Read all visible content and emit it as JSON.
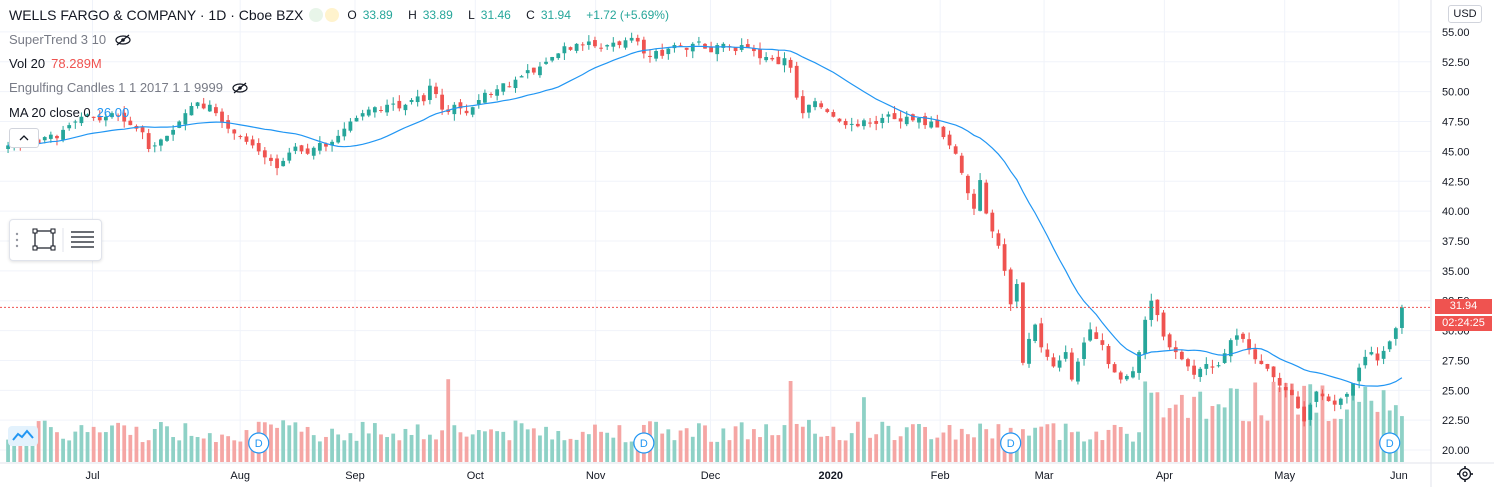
{
  "header": {
    "title": "WELLS FARGO & COMPANY · 1D · Cboe BZX",
    "ohlc": {
      "o_label": "O",
      "o": "33.89",
      "h_label": "H",
      "h": "33.89",
      "l_label": "L",
      "l": "31.46",
      "c_label": "C",
      "c": "31.94",
      "change": "+1.72 (+5.69%)"
    }
  },
  "indicators": [
    {
      "label": "SuperTrend 3 10",
      "value": ""
    },
    {
      "label": "Vol 20",
      "value": "78.289M"
    },
    {
      "label": "Engulfing Candles 1 1 2017 1 1 9999",
      "value": ""
    },
    {
      "label": "MA 20 close 0",
      "value": "26.00"
    }
  ],
  "price_axis": {
    "currency": "USD",
    "ticks": [
      "55.00",
      "52.50",
      "50.00",
      "47.50",
      "45.00",
      "42.50",
      "40.00",
      "37.50",
      "35.00",
      "32.50",
      "30.00",
      "27.50",
      "25.00",
      "22.50",
      "20.00"
    ],
    "last_price_label": "31.94",
    "countdown_label": "02:24:25"
  },
  "time_axis": {
    "labels": [
      "Jul",
      "Aug",
      "Sep",
      "Oct",
      "Nov",
      "Dec",
      "2020",
      "Feb",
      "Mar",
      "Apr",
      "May",
      "Jun"
    ]
  },
  "dividend_markers": [
    "D",
    "D",
    "D",
    "D"
  ],
  "colors": {
    "up": "#26a69a",
    "down": "#ef5350",
    "up_volume": "#8ed1c6",
    "down_volume": "#f5a6a4",
    "ma": "#2196f3",
    "last_price_tag": "#ef5350",
    "countdown_tag": "#ef5350",
    "grid": "#f0f3fa"
  },
  "chart_data": {
    "type": "candlestick",
    "title": "WELLS FARGO & COMPANY · 1D · Cboe BZX",
    "ylim": [
      19.0,
      56.5
    ],
    "x_labels": [
      "Jul",
      "Aug",
      "Sep",
      "Oct",
      "Nov",
      "Dec",
      "2020",
      "Feb",
      "Mar",
      "Apr",
      "May",
      "Jun"
    ],
    "series": [
      {
        "name": "MA 20 close 0",
        "type": "line",
        "values_key": "ma20"
      },
      {
        "name": "Vol 20",
        "type": "volume",
        "values_key": "volume"
      }
    ],
    "last": {
      "open": 33.89,
      "high": 33.89,
      "low": 31.46,
      "close": 31.94,
      "change": 1.72,
      "change_pct": 5.69,
      "ma20": 26.0,
      "volume_label": "78.289M"
    },
    "closes": [
      45.5,
      45.6,
      45.3,
      45.8,
      46.0,
      45.7,
      46.2,
      46.4,
      46.1,
      46.8,
      47.2,
      47.5,
      47.9,
      48.1,
      47.8,
      47.6,
      47.9,
      48.2,
      48.0,
      47.5,
      47.2,
      46.9,
      46.6,
      45.2,
      45.5,
      46.0,
      46.3,
      46.8,
      47.5,
      48.2,
      48.8,
      49.1,
      48.6,
      48.9,
      48.2,
      47.4,
      46.9,
      46.5,
      46.2,
      45.8,
      45.5,
      45.0,
      44.5,
      44.2,
      43.6,
      44.2,
      44.9,
      45.4,
      45.0,
      44.8,
      45.3,
      45.7,
      45.4,
      45.8,
      46.3,
      46.9,
      47.5,
      47.8,
      48.2,
      48.5,
      48.7,
      48.4,
      48.9,
      49.0,
      48.6,
      48.9,
      49.3,
      49.6,
      49.2,
      50.5,
      49.8,
      48.5,
      48.3,
      48.9,
      48.6,
      48.2,
      48.7,
      49.3,
      49.9,
      49.8,
      50.2,
      50.7,
      50.4,
      51.0,
      51.3,
      51.8,
      51.6,
      52.1,
      52.5,
      52.9,
      53.2,
      53.8,
      53.5,
      54.0,
      53.9,
      54.2,
      53.8,
      53.6,
      53.9,
      54.1,
      53.9,
      54.3,
      54.5,
      54.2,
      53.2,
      52.9,
      53.4,
      53.0,
      53.6,
      53.9,
      53.8,
      53.5,
      54.0,
      54.2,
      53.6,
      53.3,
      53.9,
      54.0,
      53.7,
      53.4,
      53.9,
      53.7,
      53.4,
      52.8,
      52.9,
      52.7,
      52.3,
      52.8,
      52.0,
      49.5,
      48.2,
      48.9,
      49.2,
      48.7,
      48.3,
      47.9,
      47.5,
      47.2,
      47.3,
      47.1,
      47.6,
      47.4,
      47.3,
      47.8,
      48.1,
      47.7,
      47.5,
      47.9,
      47.6,
      47.8,
      47.2,
      47.5,
      47.0,
      46.2,
      45.5,
      44.8,
      43.2,
      41.5,
      40.2,
      42.6,
      39.8,
      38.3,
      37.1,
      35.0,
      32.2,
      33.9,
      27.3,
      29.3,
      30.5,
      28.6,
      27.8,
      27.0,
      27.5,
      28.2,
      25.9,
      27.4,
      29.0,
      30.1,
      29.3,
      28.8,
      27.2,
      26.5,
      25.9,
      26.2,
      26.6,
      28.2,
      30.9,
      32.5,
      31.3,
      29.5,
      28.6,
      28.2,
      27.6,
      27.0,
      26.3,
      26.8,
      27.2,
      26.9,
      27.1,
      28.1,
      29.2,
      29.6,
      29.3,
      28.4,
      27.6,
      27.2,
      26.8,
      26.1,
      25.4,
      25.0,
      24.6,
      23.5,
      22.4,
      23.8,
      24.9,
      24.5,
      24.1,
      23.8,
      24.3,
      24.7,
      25.6,
      26.9,
      27.8,
      28.2,
      27.5,
      28.3,
      29.1,
      30.2,
      31.94
    ],
    "y_ticks": [
      55.0,
      52.5,
      50.0,
      47.5,
      45.0,
      42.5,
      40.0,
      37.5,
      35.0,
      32.5,
      30.0,
      27.5,
      25.0,
      22.5,
      20.0
    ]
  }
}
